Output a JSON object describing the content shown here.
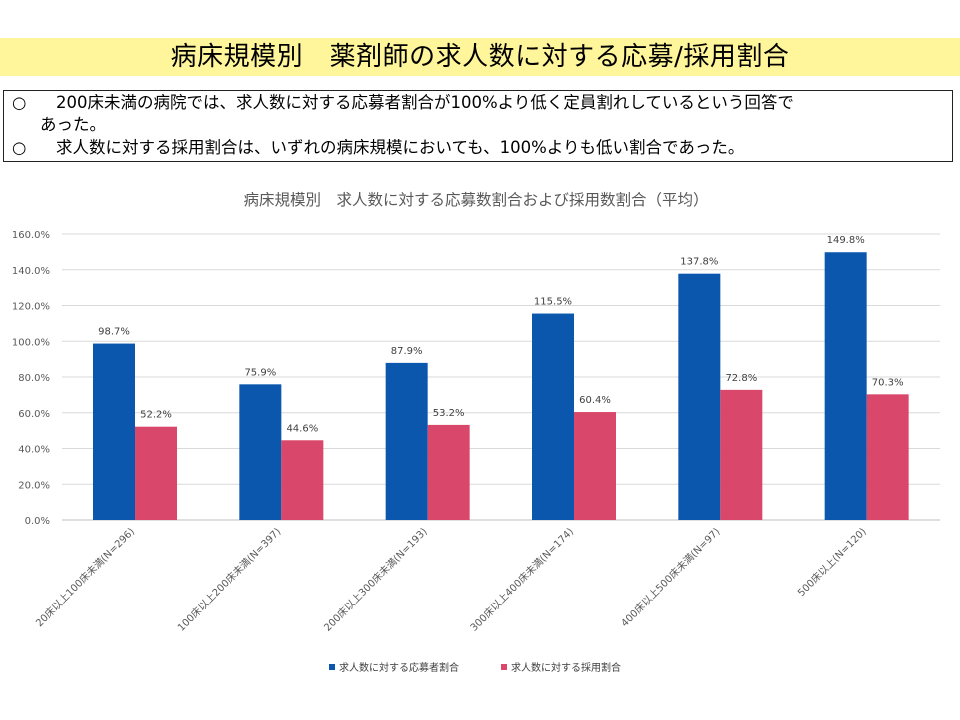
{
  "slide": {
    "title": "病床規模別　薬剤師の求人数に対する応募/採用割合",
    "bullets": [
      {
        "mark": "○",
        "lines": [
          "200床未満の病院では、求人数に対する応募者割合が100%より低く定員割れしているという回答で",
          "あった。"
        ]
      },
      {
        "mark": "○",
        "lines": [
          "求人数に対する採用割合は、いずれの病床規模においても、100%よりも低い割合であった。"
        ]
      }
    ]
  },
  "chart_data": {
    "type": "bar",
    "title": "病床規模別　求人数に対する応募数割合および採用数割合（平均）",
    "xlabel": "",
    "ylabel": "",
    "ylim": [
      0,
      160
    ],
    "yticks": [
      "0.0%",
      "20.0%",
      "40.0%",
      "60.0%",
      "80.0%",
      "100.0%",
      "120.0%",
      "140.0%",
      "160.0%"
    ],
    "categories": [
      "20床以上100床未満(N=296)",
      "100床以上200床未満(N=397)",
      "200床以上300床未満(N=193)",
      "300床以上400床未満(N=174)",
      "400床以上500床未満(N=97)",
      "500床以上(N=120)"
    ],
    "series": [
      {
        "name": "求人数に対する応募者割合",
        "color": "#0b57ad",
        "values": [
          98.7,
          75.9,
          87.9,
          115.5,
          137.8,
          149.8
        ],
        "labels": [
          "98.7%",
          "75.9%",
          "87.9%",
          "115.5%",
          "137.8%",
          "149.8%"
        ]
      },
      {
        "name": "求人数に対する採用割合",
        "color": "#d9486b",
        "values": [
          52.2,
          44.6,
          53.2,
          60.4,
          72.8,
          70.3
        ],
        "labels": [
          "52.2%",
          "44.6%",
          "53.2%",
          "60.4%",
          "72.8%",
          "70.3%"
        ]
      }
    ],
    "grid": true,
    "legend": "bottom"
  }
}
